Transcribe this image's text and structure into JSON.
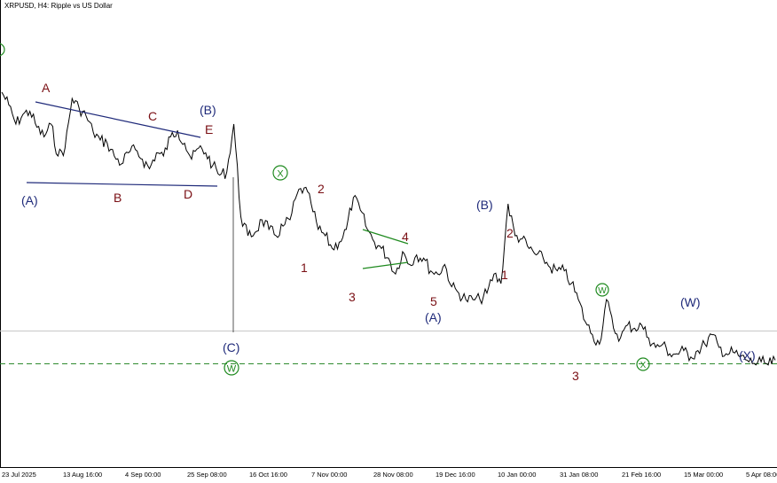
{
  "title": "XRPUSD, H4:  Ripple vs US Dollar",
  "colors": {
    "price": "#000000",
    "navy": "#1f2a7a",
    "maroon": "#7a0f14",
    "green": "#1f8a1f",
    "hline": "#c8c8c8",
    "dashed": "#2e8b2e"
  },
  "x_ticks": [
    "23 Jul 2025",
    "13 Aug 16:00",
    "4 Sep 00:00",
    "25 Sep 08:00",
    "16 Oct 16:00",
    "7 Nov 00:00",
    "28 Nov 08:00",
    "19 Dec 16:00",
    "10 Jan 00:00",
    "31 Jan 08:00",
    "21 Feb 16:00",
    "15 Mar 00:00",
    "5 Apr 08:00"
  ],
  "chart_data": {
    "type": "line",
    "series": [
      {
        "values": [
          3.5,
          3.42,
          3.3,
          3.36,
          3.38,
          3.28,
          3.22,
          3.3,
          3.1,
          3.15,
          3.46,
          3.4,
          3.35,
          3.25,
          3.2,
          3.18,
          3.1,
          3.05,
          3.12,
          3.14,
          3.08,
          3.02,
          3.12,
          3.1,
          3.22,
          3.26,
          3.18,
          3.08,
          3.15,
          3.12,
          3.04,
          2.98,
          3.0,
          3.3,
          2.72,
          2.6,
          2.62,
          2.7,
          2.64,
          2.6,
          2.66,
          2.7,
          2.86,
          2.9,
          2.8,
          2.64,
          2.6,
          2.52,
          2.56,
          2.64,
          2.84,
          2.76,
          2.64,
          2.56,
          2.52,
          2.46,
          2.36,
          2.5,
          2.42,
          2.48,
          2.46,
          2.38,
          2.36,
          2.42,
          2.28,
          2.24,
          2.2,
          2.2,
          2.2,
          2.24,
          2.36,
          2.3,
          2.8,
          2.6,
          2.58,
          2.52,
          2.48,
          2.46,
          2.4,
          2.38,
          2.38,
          2.3,
          2.2,
          2.06,
          1.98,
          1.92,
          2.2,
          2.02,
          1.96,
          2.04,
          2.02,
          2.04,
          1.96,
          1.9,
          1.92,
          1.86,
          1.86,
          1.88,
          1.84,
          1.88,
          1.92,
          1.98,
          1.9,
          1.86,
          1.87,
          1.84,
          1.82,
          1.8,
          1.81,
          1.79,
          1.82
        ]
      }
    ],
    "annotations": {
      "navy": [
        "(A)",
        "(B)",
        "(C)",
        "(B)",
        "(A)",
        "(W)",
        "(X)"
      ],
      "maroon": [
        "A",
        "B",
        "C",
        "D",
        "E",
        "1",
        "2",
        "3",
        "4",
        "5",
        "1",
        "2",
        "3"
      ],
      "green": [
        "X",
        "W",
        "W",
        "X"
      ]
    }
  }
}
